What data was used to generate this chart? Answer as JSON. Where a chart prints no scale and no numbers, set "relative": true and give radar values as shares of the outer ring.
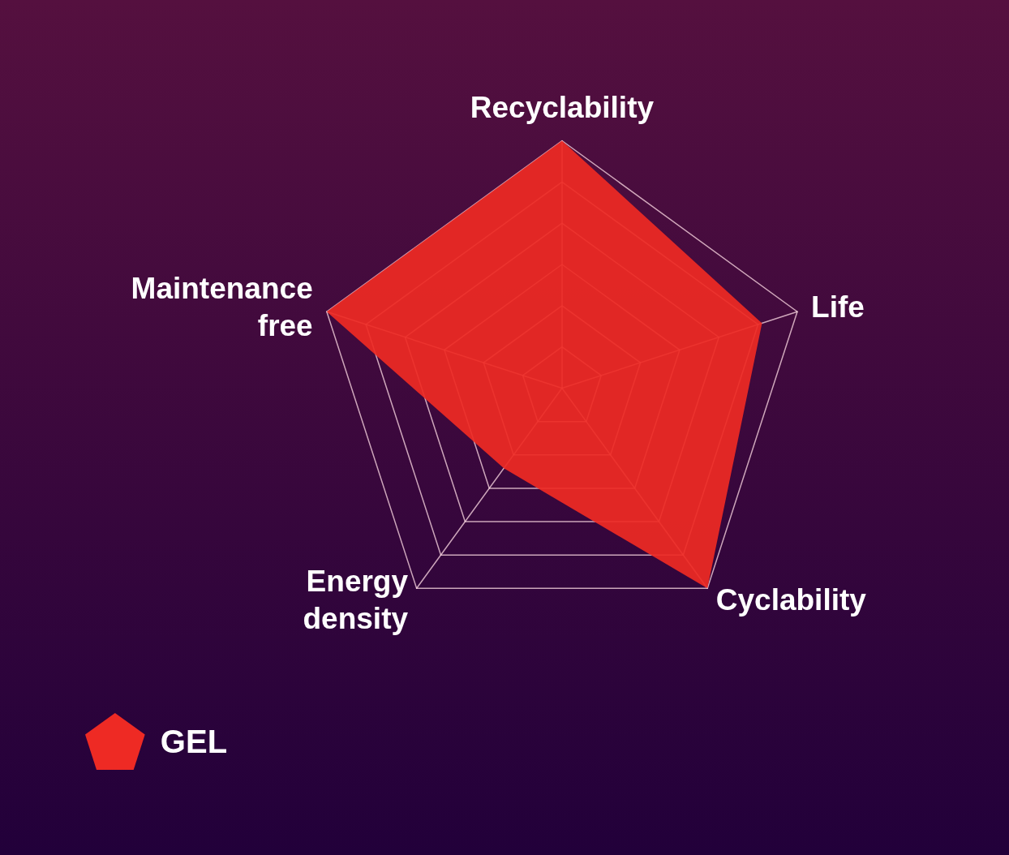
{
  "chart_data": {
    "type": "radar",
    "relative": true,
    "categories": [
      "Recyclability",
      "Life",
      "Cyclability",
      "Energy density",
      "Maintenance free"
    ],
    "series": [
      {
        "name": "GEL",
        "color": "#ee2a24",
        "values": [
          1,
          0.85,
          1,
          0.4,
          1
        ]
      }
    ],
    "grid": true,
    "legend": "bottom left"
  }
}
